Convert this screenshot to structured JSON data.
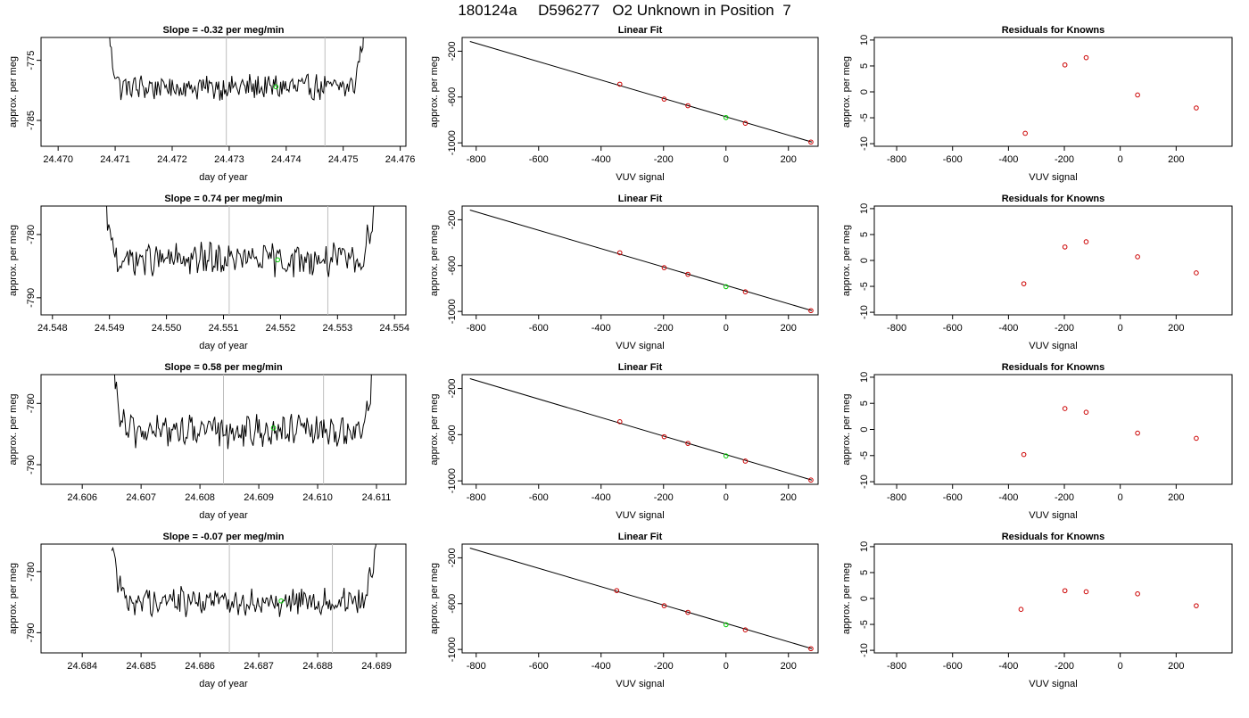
{
  "figure": {
    "title": "180124a     D596277   O2 Unknown in Position  7"
  },
  "colors": {
    "trace": "#000000",
    "green": "#00cc00",
    "red": "#cc0000",
    "vline": "#bebebe"
  },
  "chart_data": [
    {
      "row": 0,
      "col": 0,
      "type": "line",
      "title": "Slope =  -0.32  per meg/min",
      "xlabel": "day of year",
      "ylabel": "approx. per meg",
      "xlim": [
        24.4697,
        24.4761
      ],
      "ylim": [
        -789.3,
        -771.2
      ],
      "xticks": [
        24.47,
        24.471,
        24.472,
        24.473,
        24.474,
        24.475,
        24.476
      ],
      "xtick_labels": [
        "24.470",
        "24.471",
        "24.472",
        "24.473",
        "24.474",
        "24.475",
        "24.476"
      ],
      "yticks": [
        -775,
        -785
      ],
      "ytick_labels": [
        "-775",
        "-785"
      ],
      "x_start": 24.47085,
      "x_end": 24.47545,
      "vlines": [
        24.47295,
        24.47468
      ],
      "trace_level": -779.5,
      "trace_amp": 1.8,
      "rise_height": 12,
      "marker": {
        "x": 24.47382,
        "y": -779.4
      }
    },
    {
      "row": 0,
      "col": 1,
      "type": "line",
      "title": "Linear Fit",
      "xlabel": "VUV signal",
      "ylabel": "approx. per meg",
      "xlim": [
        -845,
        295
      ],
      "ylim": [
        -1030,
        -80
      ],
      "xticks": [
        -800,
        -600,
        -400,
        -200,
        0,
        200
      ],
      "xtick_labels": [
        "-800",
        "-600",
        "-400",
        "-200",
        "0",
        "200"
      ],
      "yticks": [
        -200,
        -600,
        -1000
      ],
      "ytick_labels": [
        "-200",
        "-600",
        "-1000"
      ],
      "fit_line": {
        "x": [
          -820,
          275
        ],
        "y": [
          -115,
          -993
        ]
      },
      "knowns": [
        {
          "x": -340,
          "y": -488
        },
        {
          "x": -198,
          "y": -618
        },
        {
          "x": -122,
          "y": -676
        },
        {
          "x": 62,
          "y": -829
        },
        {
          "x": 272,
          "y": -993
        }
      ],
      "unknown": {
        "x": 0,
        "y": -779
      }
    },
    {
      "row": 0,
      "col": 2,
      "type": "scatter",
      "title": "Residuals for Knowns",
      "xlabel": "VUV signal",
      "ylabel": "approx. per meg",
      "xlim": [
        -880,
        400
      ],
      "ylim": [
        -10.5,
        10.5
      ],
      "xticks": [
        -800,
        -600,
        -400,
        -200,
        0,
        200
      ],
      "xtick_labels": [
        "-800",
        "-600",
        "-400",
        "-200",
        "0",
        "200"
      ],
      "yticks": [
        10,
        5,
        0,
        -5,
        -10
      ],
      "ytick_labels": [
        "10",
        "5",
        "0",
        "-5",
        "-10"
      ],
      "points": [
        {
          "x": -340,
          "y": -8.0
        },
        {
          "x": -198,
          "y": 5.2
        },
        {
          "x": -122,
          "y": 6.6
        },
        {
          "x": 62,
          "y": -0.6
        },
        {
          "x": 272,
          "y": -3.1
        }
      ]
    },
    {
      "row": 1,
      "col": 0,
      "type": "line",
      "title": "Slope =  0.74  per meg/min",
      "xlabel": "day of year",
      "ylabel": "approx. per meg",
      "xlim": [
        24.5478,
        24.5542
      ],
      "ylim": [
        -792.7,
        -775.5
      ],
      "xticks": [
        24.548,
        24.549,
        24.55,
        24.551,
        24.552,
        24.553,
        24.554
      ],
      "xtick_labels": [
        "24.548",
        "24.549",
        "24.550",
        "24.551",
        "24.552",
        "24.553",
        "24.554"
      ],
      "yticks": [
        -780,
        -790
      ],
      "ytick_labels": [
        "-780",
        "-790"
      ],
      "x_start": 24.5489,
      "x_end": 24.55372,
      "vlines": [
        24.5511,
        24.55283
      ],
      "trace_level": -784.0,
      "trace_amp": 2.2,
      "rise_height": 10,
      "marker": {
        "x": 24.55195,
        "y": -784.0
      }
    },
    {
      "row": 1,
      "col": 1,
      "type": "line",
      "title": "Linear Fit",
      "xlabel": "VUV signal",
      "ylabel": "approx. per meg",
      "xlim": [
        -845,
        295
      ],
      "ylim": [
        -1030,
        -80
      ],
      "xticks": [
        -800,
        -600,
        -400,
        -200,
        0,
        200
      ],
      "xtick_labels": [
        "-800",
        "-600",
        "-400",
        "-200",
        "0",
        "200"
      ],
      "yticks": [
        -200,
        -600,
        -1000
      ],
      "ytick_labels": [
        "-200",
        "-600",
        "-1000"
      ],
      "fit_line": {
        "x": [
          -820,
          275
        ],
        "y": [
          -115,
          -993
        ]
      },
      "knowns": [
        {
          "x": -340,
          "y": -488
        },
        {
          "x": -198,
          "y": -618
        },
        {
          "x": -122,
          "y": -676
        },
        {
          "x": 62,
          "y": -829
        },
        {
          "x": 272,
          "y": -993
        }
      ],
      "unknown": {
        "x": 0,
        "y": -784
      }
    },
    {
      "row": 1,
      "col": 2,
      "type": "scatter",
      "title": "Residuals for Knowns",
      "xlabel": "VUV signal",
      "ylabel": "approx. per meg",
      "xlim": [
        -880,
        400
      ],
      "ylim": [
        -10.5,
        10.5
      ],
      "xticks": [
        -800,
        -600,
        -400,
        -200,
        0,
        200
      ],
      "xtick_labels": [
        "-800",
        "-600",
        "-400",
        "-200",
        "0",
        "200"
      ],
      "yticks": [
        10,
        5,
        0,
        -5,
        -10
      ],
      "ytick_labels": [
        "10",
        "5",
        "0",
        "-5",
        "-10"
      ],
      "points": [
        {
          "x": -345,
          "y": -4.5
        },
        {
          "x": -198,
          "y": 2.6
        },
        {
          "x": -122,
          "y": 3.6
        },
        {
          "x": 62,
          "y": 0.7
        },
        {
          "x": 272,
          "y": -2.4
        }
      ]
    },
    {
      "row": 2,
      "col": 0,
      "type": "line",
      "title": "Slope =  0.58  per meg/min",
      "xlabel": "day of year",
      "ylabel": "approx. per meg",
      "xlim": [
        24.6053,
        24.6115
      ],
      "ylim": [
        -793.2,
        -775.3
      ],
      "xticks": [
        24.606,
        24.607,
        24.608,
        24.609,
        24.61,
        24.611
      ],
      "xtick_labels": [
        "24.606",
        "24.607",
        "24.608",
        "24.609",
        "24.610",
        "24.611"
      ],
      "yticks": [
        -780,
        -790
      ],
      "ytick_labels": [
        "-780",
        "-790"
      ],
      "x_start": 24.60652,
      "x_end": 24.611,
      "vlines": [
        24.6084,
        24.6101
      ],
      "trace_level": -784.5,
      "trace_amp": 2.2,
      "rise_height": 10,
      "marker": {
        "x": 24.60925,
        "y": -784.0
      }
    },
    {
      "row": 2,
      "col": 1,
      "type": "line",
      "title": "Linear Fit",
      "xlabel": "VUV signal",
      "ylabel": "approx. per meg",
      "xlim": [
        -845,
        295
      ],
      "ylim": [
        -1030,
        -80
      ],
      "xticks": [
        -800,
        -600,
        -400,
        -200,
        0,
        200
      ],
      "xtick_labels": [
        "-800",
        "-600",
        "-400",
        "-200",
        "0",
        "200"
      ],
      "yticks": [
        -200,
        -600,
        -1000
      ],
      "ytick_labels": [
        "-200",
        "-600",
        "-1000"
      ],
      "fit_line": {
        "x": [
          -820,
          275
        ],
        "y": [
          -115,
          -993
        ]
      },
      "knowns": [
        {
          "x": -340,
          "y": -488
        },
        {
          "x": -198,
          "y": -618
        },
        {
          "x": -122,
          "y": -676
        },
        {
          "x": 62,
          "y": -829
        },
        {
          "x": 272,
          "y": -993
        }
      ],
      "unknown": {
        "x": 0,
        "y": -784
      }
    },
    {
      "row": 2,
      "col": 2,
      "type": "scatter",
      "title": "Residuals for Knowns",
      "xlabel": "VUV signal",
      "ylabel": "approx. per meg",
      "xlim": [
        -880,
        400
      ],
      "ylim": [
        -10.5,
        10.5
      ],
      "xticks": [
        -800,
        -600,
        -400,
        -200,
        0,
        200
      ],
      "xtick_labels": [
        "-800",
        "-600",
        "-400",
        "-200",
        "0",
        "200"
      ],
      "yticks": [
        10,
        5,
        0,
        -5,
        -10
      ],
      "ytick_labels": [
        "10",
        "5",
        "0",
        "-5",
        "-10"
      ],
      "points": [
        {
          "x": -345,
          "y": -4.8
        },
        {
          "x": -198,
          "y": 4.0
        },
        {
          "x": -122,
          "y": 3.3
        },
        {
          "x": 62,
          "y": -0.7
        },
        {
          "x": 272,
          "y": -1.7
        }
      ]
    },
    {
      "row": 3,
      "col": 0,
      "type": "line",
      "title": "Slope =  -0.07  per meg/min",
      "xlabel": "day of year",
      "ylabel": "approx. per meg",
      "xlim": [
        24.6833,
        24.6895
      ],
      "ylim": [
        -793.3,
        -775.5
      ],
      "xticks": [
        24.684,
        24.685,
        24.686,
        24.687,
        24.688,
        24.689
      ],
      "xtick_labels": [
        "24.684",
        "24.685",
        "24.686",
        "24.687",
        "24.688",
        "24.689"
      ],
      "yticks": [
        -780,
        -790
      ],
      "ytick_labels": [
        "-780",
        "-790"
      ],
      "x_start": 24.6845,
      "x_end": 24.68905,
      "vlines": [
        24.6865,
        24.68825
      ],
      "trace_level": -784.8,
      "trace_amp": 2.0,
      "rise_height": 10,
      "marker": {
        "x": 24.68738,
        "y": -784.8
      }
    },
    {
      "row": 3,
      "col": 1,
      "type": "line",
      "title": "Linear Fit",
      "xlabel": "VUV signal",
      "ylabel": "approx. per meg",
      "xlim": [
        -845,
        295
      ],
      "ylim": [
        -1030,
        -80
      ],
      "xticks": [
        -800,
        -600,
        -400,
        -200,
        0,
        200
      ],
      "xtick_labels": [
        "-800",
        "-600",
        "-400",
        "-200",
        "0",
        "200"
      ],
      "yticks": [
        -200,
        -600,
        -1000
      ],
      "ytick_labels": [
        "-200",
        "-600",
        "-1000"
      ],
      "fit_line": {
        "x": [
          -820,
          275
        ],
        "y": [
          -115,
          -993
        ]
      },
      "knowns": [
        {
          "x": -350,
          "y": -486
        },
        {
          "x": -198,
          "y": -618
        },
        {
          "x": -122,
          "y": -676
        },
        {
          "x": 62,
          "y": -829
        },
        {
          "x": 272,
          "y": -993
        }
      ],
      "unknown": {
        "x": 0,
        "y": -784
      }
    },
    {
      "row": 3,
      "col": 2,
      "type": "scatter",
      "title": "Residuals for Knowns",
      "xlabel": "VUV signal",
      "ylabel": "approx. per meg",
      "xlim": [
        -880,
        400
      ],
      "ylim": [
        -10.5,
        10.5
      ],
      "xticks": [
        -800,
        -600,
        -400,
        -200,
        0,
        200
      ],
      "xtick_labels": [
        "-800",
        "-600",
        "-400",
        "-200",
        "0",
        "200"
      ],
      "yticks": [
        10,
        5,
        0,
        -5,
        -10
      ],
      "ytick_labels": [
        "10",
        "5",
        "0",
        "-5",
        "-10"
      ],
      "points": [
        {
          "x": -355,
          "y": -2.1
        },
        {
          "x": -198,
          "y": 1.5
        },
        {
          "x": -122,
          "y": 1.3
        },
        {
          "x": 62,
          "y": 0.9
        },
        {
          "x": 272,
          "y": -1.4
        }
      ]
    }
  ]
}
